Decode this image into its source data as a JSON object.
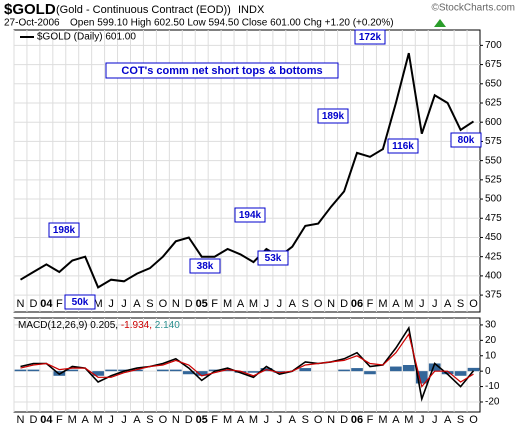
{
  "header": {
    "symbol": "$GOLD",
    "description": "(Gold - Continuous Contract (EOD))",
    "exchange": "INDX",
    "date": "27-Oct-2006",
    "quote": "Open 599.10  High 602.50  Low 594.50  Close 601.00  Chg +1.20 (+0.20%)",
    "copyright": "©StockCharts.com"
  },
  "chart_data": [
    {
      "type": "line",
      "legend": "$GOLD (Daily) 601.00",
      "categories": [
        "N",
        "D",
        "04",
        "F",
        "M",
        "A",
        "M",
        "J",
        "J",
        "A",
        "S",
        "O",
        "N",
        "D",
        "05",
        "F",
        "M",
        "A",
        "M",
        "J",
        "J",
        "A",
        "S",
        "O",
        "N",
        "D",
        "06",
        "F",
        "M",
        "A",
        "M",
        "J",
        "J",
        "A",
        "S",
        "O"
      ],
      "series": [
        {
          "name": "$GOLD",
          "color": "#000000",
          "values": [
            395,
            405,
            415,
            405,
            420,
            425,
            385,
            395,
            393,
            403,
            410,
            425,
            445,
            450,
            425,
            425,
            435,
            428,
            418,
            435,
            425,
            438,
            465,
            468,
            490,
            510,
            560,
            555,
            565,
            625,
            690,
            585,
            635,
            625,
            590,
            601
          ]
        }
      ],
      "ylim": [
        353,
        720
      ],
      "yticks": [
        375,
        400,
        425,
        450,
        475,
        500,
        525,
        550,
        575,
        600,
        625,
        650,
        675,
        700
      ],
      "grid": true,
      "annotation": "COT's comm net short tops & bottoms",
      "labels": [
        "198k",
        "50k",
        "38k",
        "194k",
        "53k",
        "189k",
        "172k",
        "116k",
        "80k"
      ]
    },
    {
      "type": "macd",
      "legend_parts": [
        "MACD(12,26,9)",
        "0.205,",
        "-1.934,",
        "2.140"
      ],
      "categories": [
        "N",
        "D",
        "04",
        "F",
        "M",
        "A",
        "M",
        "J",
        "J",
        "A",
        "S",
        "O",
        "N",
        "D",
        "05",
        "F",
        "M",
        "A",
        "M",
        "J",
        "J",
        "A",
        "S",
        "O",
        "N",
        "D",
        "06",
        "F",
        "M",
        "A",
        "M",
        "J",
        "J",
        "A",
        "S",
        "O"
      ],
      "series": [
        {
          "color": "#000000",
          "values": [
            3,
            5,
            5,
            -2,
            3,
            2,
            -7,
            -3,
            0,
            2,
            3,
            5,
            8,
            2,
            -6,
            0,
            2,
            -1,
            -4,
            3,
            -2,
            0,
            6,
            5,
            6,
            8,
            12,
            3,
            4,
            15,
            28,
            -18,
            5,
            -2,
            -10,
            0.205
          ]
        },
        {
          "color": "#cc0000",
          "values": [
            2,
            4,
            5,
            1,
            2,
            2,
            -4,
            -4,
            -1,
            1,
            3,
            4,
            7,
            4,
            -3,
            -1,
            1,
            0,
            -3,
            1,
            -1,
            0,
            4,
            5,
            6,
            7,
            10,
            5,
            4,
            12,
            24,
            -10,
            0,
            0,
            -7,
            -1.934
          ]
        },
        {
          "color": "#336699",
          "kind": "histogram",
          "values": [
            1,
            1,
            0,
            -3,
            1,
            0,
            -3,
            1,
            1,
            1,
            0,
            1,
            1,
            -2,
            -3,
            1,
            1,
            -1,
            -1,
            2,
            -1,
            0,
            2,
            0,
            0,
            1,
            2,
            -2,
            0,
            3,
            4,
            -8,
            5,
            -2,
            -3,
            2.14
          ]
        }
      ],
      "ylim": [
        -26.5,
        34.5
      ],
      "yticks": [
        -20,
        -10,
        0,
        10,
        20,
        30
      ],
      "grid": true
    }
  ]
}
